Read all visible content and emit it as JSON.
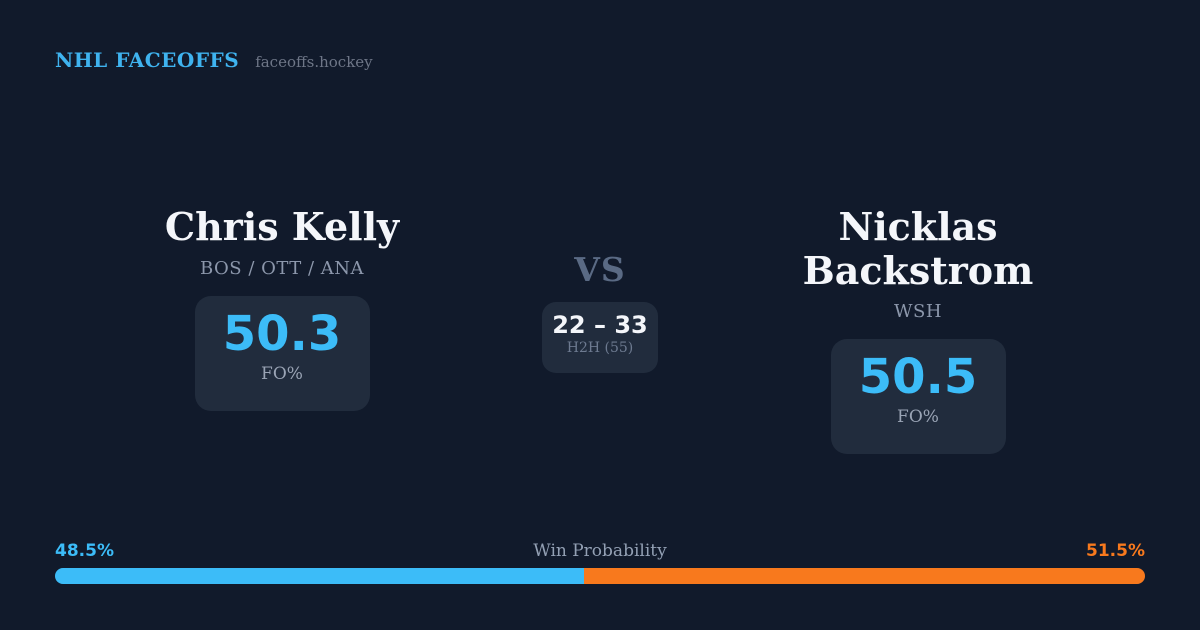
{
  "theme": {
    "background": "#111a2b",
    "card_background": "#212c3d",
    "accent_blue": "#3cbcf8",
    "accent_orange": "#f8791d",
    "text_primary": "#f4f6fa",
    "text_muted": "#8c97ab"
  },
  "header": {
    "brand": "NHL FACEOFFS",
    "site": "faceoffs.hockey"
  },
  "matchup": {
    "player_left": {
      "name": "Chris Kelly",
      "teams": "BOS / OTT / ANA",
      "fo_pct": "50.3",
      "fo_label": "FO%"
    },
    "vs_label": "VS",
    "h2h": {
      "score": "22 – 33",
      "label": "H2H (55)"
    },
    "player_right": {
      "name": "Nicklas Backstrom",
      "teams": "WSH",
      "fo_pct": "50.5",
      "fo_label": "FO%"
    }
  },
  "win_probability": {
    "title": "Win Probability",
    "left_pct_label": "48.5%",
    "right_pct_label": "51.5%",
    "left_value": 48.5,
    "right_value": 51.5
  }
}
